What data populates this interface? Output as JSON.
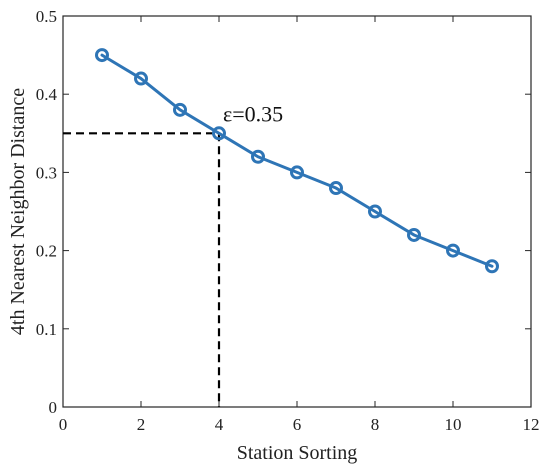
{
  "chart_data": {
    "type": "line",
    "title": "",
    "xlabel": "Station Sorting",
    "ylabel": "4th Nearest Neighbor Distance",
    "xlim": [
      0,
      12
    ],
    "ylim": [
      0,
      0.5
    ],
    "xticks": [
      0,
      2,
      4,
      6,
      8,
      10,
      12
    ],
    "yticks": [
      0,
      0.1,
      0.2,
      0.3,
      0.4,
      0.5
    ],
    "xtick_labels": [
      "0",
      "2",
      "4",
      "6",
      "8",
      "10",
      "12"
    ],
    "ytick_labels": [
      "0",
      "0.1",
      "0.2",
      "0.3",
      "0.4",
      "0.5"
    ],
    "grid": false,
    "legend": "none",
    "series": [
      {
        "x": [
          1,
          2,
          3,
          4,
          5,
          6,
          7,
          8,
          9,
          10,
          11
        ],
        "values": [
          0.45,
          0.42,
          0.38,
          0.35,
          0.32,
          0.3,
          0.28,
          0.25,
          0.22,
          0.2,
          0.18
        ],
        "color": "#2e75b6",
        "marker": "circle-open"
      }
    ],
    "annotations": [
      {
        "text": "ε=0.35",
        "x": 4,
        "y": 0.35,
        "style": "dashed-reference-lines"
      }
    ]
  }
}
